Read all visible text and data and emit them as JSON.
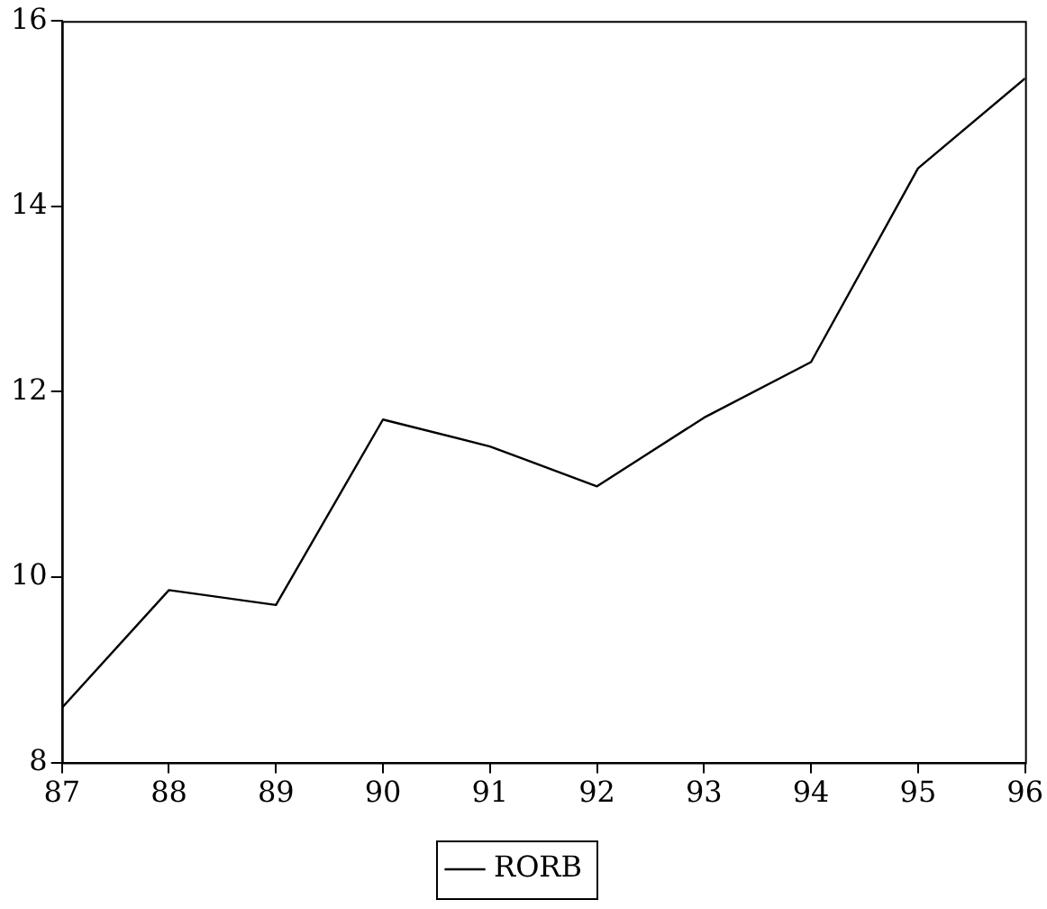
{
  "chart_data": {
    "type": "line",
    "x": [
      87,
      88,
      89,
      90,
      91,
      92,
      93,
      94,
      95,
      96
    ],
    "series": [
      {
        "name": "RORB",
        "color": "#000000",
        "values": [
          8.59,
          9.86,
          9.7,
          11.7,
          11.41,
          10.98,
          11.72,
          12.32,
          14.41,
          15.38
        ]
      }
    ],
    "xlim": [
      87,
      96
    ],
    "xticks": [
      87,
      88,
      89,
      90,
      91,
      92,
      93,
      94,
      95,
      96
    ],
    "ylim": [
      8,
      16
    ],
    "yticks": [
      8,
      10,
      12,
      14,
      16
    ],
    "grid": false,
    "legend": "bottom",
    "marker": "none",
    "line_style": "solid"
  }
}
